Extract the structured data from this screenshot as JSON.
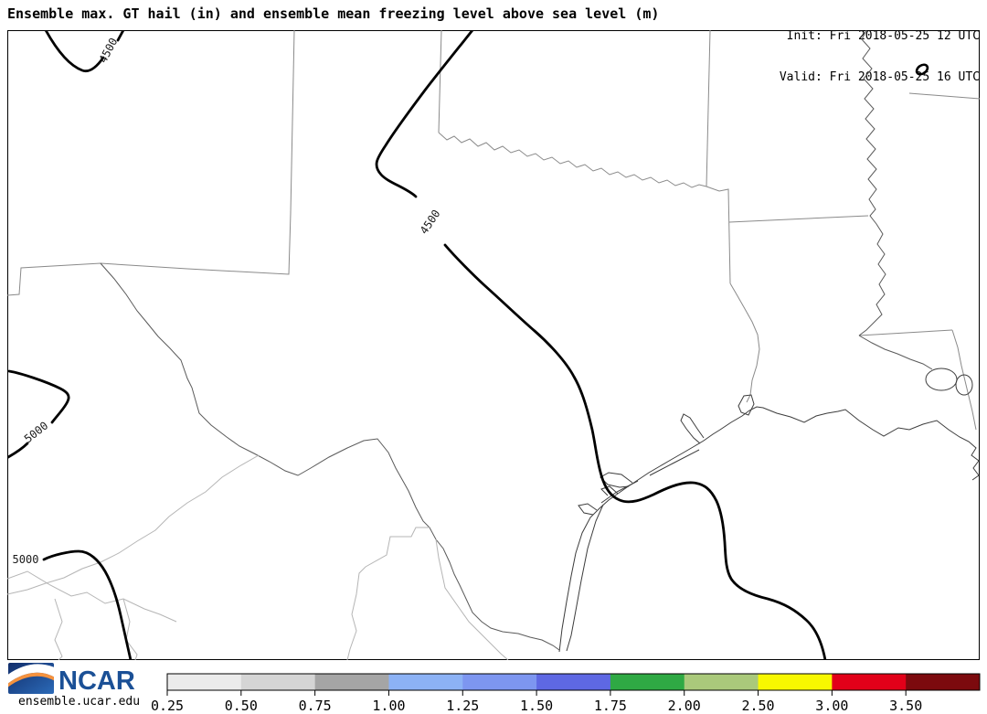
{
  "header": {
    "title": "Ensemble max. GT hail (in) and ensemble mean freezing level above sea level (m)",
    "init_line": "Init: Fri 2018-05-25 12 UTC",
    "valid_line": "Valid: Fri 2018-05-25 16 UTC"
  },
  "map": {
    "contour_labels": [
      "4500",
      "4500",
      "5000",
      "5000"
    ],
    "contour_color": "#000000",
    "state_line_color": "#8a8a8a",
    "coast_line_color": "#3c3c3c",
    "river_line_color": "#5a5a5a",
    "mexico_line_color": "#b5b5b5"
  },
  "footer": {
    "logo_text": "NCAR",
    "site_url": "ensemble.ucar.edu",
    "logo_blue_dark": "#122e6b",
    "logo_blue_light": "#2b6ab8",
    "logo_orange": "#f5923e",
    "logo_text_color": "#1b5096"
  },
  "colorbar": {
    "tick_labels": [
      "0.25",
      "0.50",
      "0.75",
      "1.00",
      "1.25",
      "1.50",
      "1.75",
      "2.00",
      "2.50",
      "3.00",
      "3.50"
    ],
    "segment_colors": [
      "#ebebeb",
      "#d5d5d5",
      "#a5a5a5",
      "#8cb2f5",
      "#7d96f0",
      "#5e68e3",
      "#2fa944",
      "#aac97b",
      "#f8f800",
      "#e20019",
      "#7c0a0e"
    ]
  },
  "chart_data": {
    "type": "contour_map",
    "field_1": "Ensemble max. GT hail (in)",
    "field_2": "ensemble mean freezing level above sea level (m)",
    "freezing_level_contours_m": [
      4500,
      5000
    ],
    "hail_colorbar_levels_in": [
      0.25,
      0.5,
      0.75,
      1.0,
      1.25,
      1.5,
      1.75,
      2.0,
      2.5,
      3.0,
      3.5
    ],
    "region": "Texas and surrounding US states / northern Mexico"
  }
}
